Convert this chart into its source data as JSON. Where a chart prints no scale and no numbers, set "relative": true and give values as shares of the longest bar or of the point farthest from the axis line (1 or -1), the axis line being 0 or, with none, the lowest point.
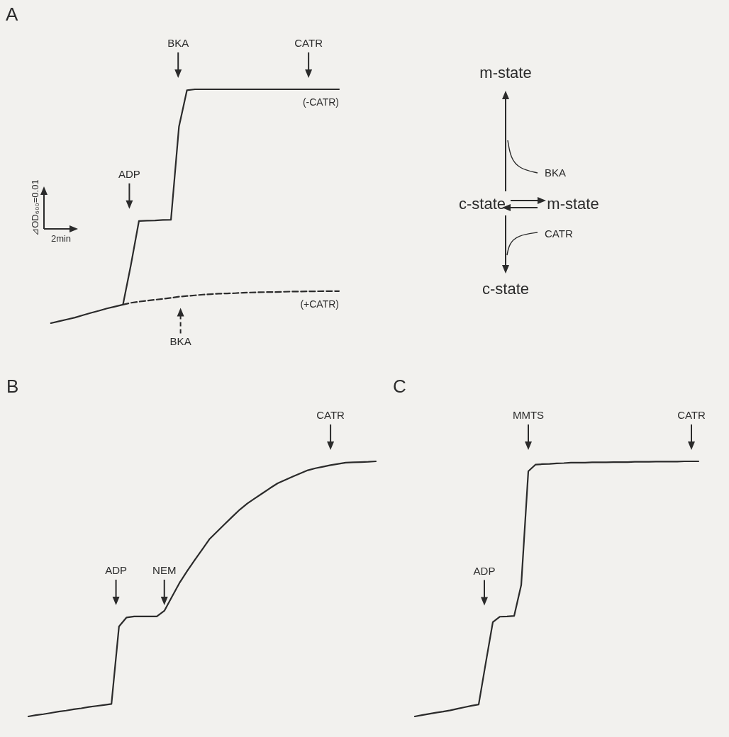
{
  "chart_data": [
    {
      "type": "line",
      "title": "A",
      "relative": true,
      "tick_labels": false,
      "legend": false,
      "categories": [
        null,
        null,
        null,
        null,
        null,
        null,
        null,
        null,
        null,
        null,
        null,
        null,
        null,
        null,
        null,
        null,
        null,
        null,
        null,
        null,
        null,
        null,
        null,
        null,
        null,
        null,
        null,
        null,
        null,
        null,
        null,
        null,
        null,
        null,
        null,
        null,
        null
      ],
      "series": [
        {
          "name": "(-CATR)",
          "color": "#2b2b2b",
          "line_style": "solid",
          "values": [
            0,
            0.008,
            0.016,
            0.024,
            0.034,
            0.044,
            0.053,
            0.063,
            0.071,
            0.079,
            0.25,
            0.437,
            0.438,
            0.439,
            0.441,
            0.442,
            0.84,
            0.996,
            1,
            1,
            1,
            1,
            1,
            1,
            1,
            1,
            1,
            1,
            1,
            1,
            1,
            1,
            1,
            1,
            1,
            1,
            1
          ]
        },
        {
          "name": "(+CATR)",
          "color": "#2b2b2b",
          "line_style": "dashed",
          "values": [
            null,
            null,
            null,
            null,
            null,
            null,
            null,
            null,
            null,
            0.079,
            0.087,
            0.092,
            0.096,
            0.1,
            0.104,
            0.108,
            0.113,
            0.116,
            0.119,
            0.122,
            0.124,
            0.126,
            0.127,
            0.128,
            0.13,
            0.131,
            0.132,
            0.133,
            0.133,
            0.134,
            0.135,
            0.135,
            0.136,
            0.136,
            0.137,
            0.137,
            0.137
          ]
        }
      ],
      "annotations": [
        "⊿OD₆₀₀=0.01",
        "2min",
        "ADP",
        "BKA",
        "CATR",
        "BKA"
      ]
    },
    {
      "type": "other",
      "annotations": [
        "m-state",
        "BKA",
        "c-state",
        "m-state",
        "CATR",
        "c-state"
      ]
    },
    {
      "type": "line",
      "title": "B",
      "relative": true,
      "tick_labels": false,
      "categories": [
        null,
        null,
        null,
        null,
        null,
        null,
        null,
        null,
        null,
        null,
        null,
        null,
        null,
        null,
        null,
        null,
        null,
        null,
        null,
        null,
        null,
        null,
        null,
        null,
        null,
        null,
        null,
        null,
        null,
        null,
        null,
        null,
        null,
        null,
        null,
        null,
        null,
        null,
        null,
        null,
        null,
        null,
        null,
        null,
        null,
        null,
        null
      ],
      "series": [
        {
          "color": "#2b2b2b",
          "values": [
            0,
            0.005,
            0.009,
            0.014,
            0.019,
            0.023,
            0.028,
            0.032,
            0.037,
            0.041,
            0.045,
            0.049,
            0.353,
            0.388,
            0.392,
            0.392,
            0.392,
            0.392,
            0.414,
            0.469,
            0.523,
            0.569,
            0.612,
            0.654,
            0.696,
            0.725,
            0.754,
            0.783,
            0.811,
            0.835,
            0.855,
            0.875,
            0.895,
            0.914,
            0.927,
            0.94,
            0.953,
            0.965,
            0.973,
            0.979,
            0.985,
            0.99,
            0.995,
            0.996,
            0.997,
            0.998,
            1
          ]
        }
      ],
      "annotations": [
        "ADP",
        "NEM",
        "CATR"
      ]
    },
    {
      "type": "line",
      "title": "C",
      "relative": true,
      "tick_labels": false,
      "categories": [
        null,
        null,
        null,
        null,
        null,
        null,
        null,
        null,
        null,
        null,
        null,
        null,
        null,
        null,
        null,
        null,
        null,
        null,
        null,
        null,
        null,
        null,
        null,
        null,
        null,
        null,
        null,
        null,
        null,
        null,
        null,
        null,
        null,
        null,
        null,
        null,
        null,
        null,
        null,
        null,
        null
      ],
      "series": [
        {
          "color": "#2b2b2b",
          "values": [
            0,
            0.005,
            0.01,
            0.015,
            0.019,
            0.024,
            0.03,
            0.036,
            0.042,
            0.047,
            0.21,
            0.37,
            0.391,
            0.392,
            0.394,
            0.515,
            0.961,
            0.987,
            0.989,
            0.99,
            0.992,
            0.993,
            0.995,
            0.995,
            0.995,
            0.996,
            0.996,
            0.996,
            0.997,
            0.997,
            0.997,
            0.998,
            0.998,
            0.998,
            0.999,
            0.999,
            0.999,
            0.999,
            1,
            1,
            1
          ]
        }
      ],
      "annotations": [
        "MMTS",
        "ADP",
        "CATR"
      ]
    }
  ]
}
